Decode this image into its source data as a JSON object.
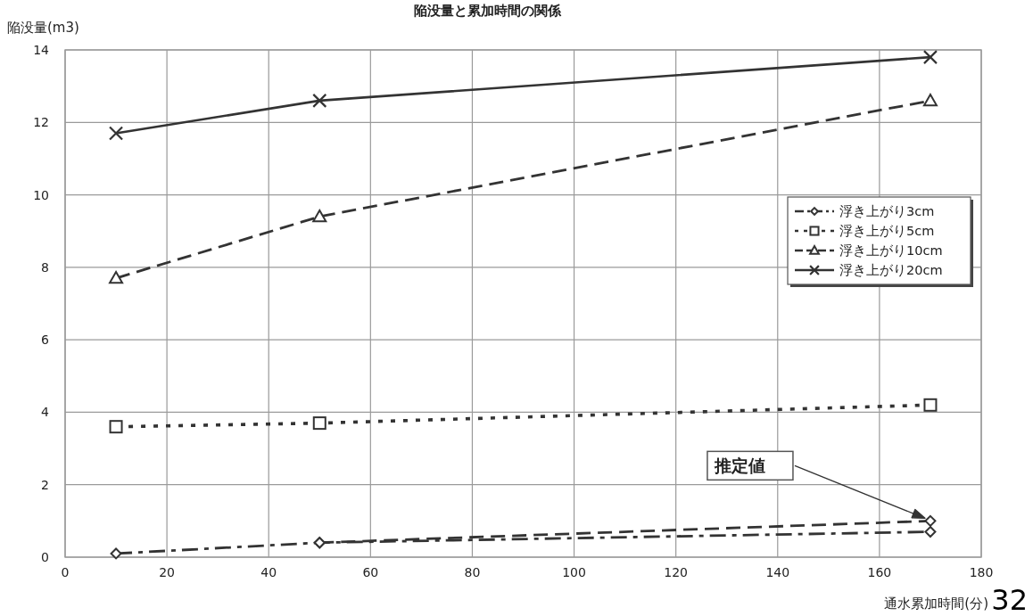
{
  "chart_data": {
    "type": "line",
    "title": "陥没量と累加時間の関係",
    "xlabel": "通水累加時間(分)",
    "ylabel": "陥没量(m3)",
    "x": [
      10,
      50,
      170
    ],
    "series": [
      {
        "name": "浮き上がり3cm",
        "color": "#333333",
        "values": [
          0.1,
          0.4,
          0.7
        ],
        "marker": "diamond",
        "line_style": "dashdot"
      },
      {
        "name": "浮き上がり5cm",
        "color": "#333333",
        "values": [
          3.6,
          3.7,
          4.2
        ],
        "marker": "square",
        "line_style": "dotted"
      },
      {
        "name": "浮き上がり10cm",
        "color": "#333333",
        "values": [
          7.7,
          9.4,
          12.6
        ],
        "marker": "triangle",
        "line_style": "dashed"
      },
      {
        "name": "浮き上がり20cm",
        "color": "#333333",
        "values": [
          11.7,
          12.6,
          13.8
        ],
        "marker": "cross",
        "line_style": "solid"
      },
      {
        "color": "#333333",
        "x": [
          50,
          170
        ],
        "values": [
          0.4,
          1.0
        ],
        "marker": "diamond",
        "line_style": "dashed"
      }
    ],
    "xlim": [
      0,
      180
    ],
    "xticks": [
      0,
      20,
      40,
      60,
      80,
      100,
      120,
      140,
      160,
      180
    ],
    "ylim": [
      0,
      14
    ],
    "yticks": [
      0,
      2,
      4,
      6,
      8,
      10,
      12,
      14
    ],
    "grid": true,
    "legend": "right",
    "annotations": [
      "推定値",
      "32"
    ]
  }
}
